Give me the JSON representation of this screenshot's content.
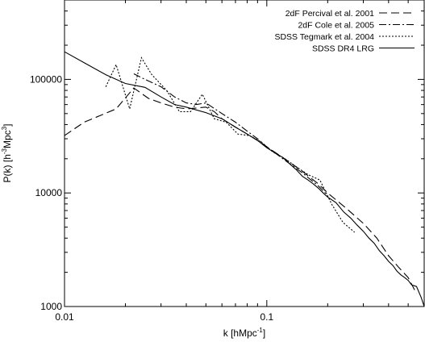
{
  "chart_data": {
    "type": "line",
    "title": "",
    "xlabel": "k [hMpc",
    "xlabel_sup": "-1",
    "xlabel_end": "]",
    "ylabel": "P(k) [h",
    "ylabel_sup1": "-3",
    "ylabel_mid": "Mpc",
    "ylabel_sup2": "3",
    "ylabel_end": "]",
    "xscale": "log",
    "yscale": "log",
    "xlim": [
      0.01,
      0.6
    ],
    "ylim": [
      1000,
      500000
    ],
    "grid": false,
    "legend_position": "top-right",
    "x_ticks": [
      {
        "value": 0.01,
        "label": "0.01"
      },
      {
        "value": 0.1,
        "label": "0.1"
      }
    ],
    "y_ticks": [
      {
        "value": 1000,
        "label": "1000"
      },
      {
        "value": 10000,
        "label": "10000"
      },
      {
        "value": 100000,
        "label": "100000"
      }
    ],
    "series": [
      {
        "name": "2dF Percival et al. 2001",
        "dash": "10,5",
        "x": [
          0.01,
          0.0125,
          0.015,
          0.018,
          0.022,
          0.026,
          0.03,
          0.035,
          0.04,
          0.045,
          0.05,
          0.055,
          0.06,
          0.07,
          0.08,
          0.09,
          0.1,
          0.12,
          0.15,
          0.18,
          0.2,
          0.25,
          0.3,
          0.35,
          0.4,
          0.45,
          0.5,
          0.55
        ],
        "y": [
          32000,
          42000,
          48000,
          55000,
          84000,
          68000,
          62000,
          57000,
          55000,
          56000,
          57000,
          52000,
          45000,
          38000,
          33000,
          29000,
          25500,
          20500,
          15500,
          12000,
          10000,
          7200,
          5400,
          4000,
          2800,
          2200,
          1800,
          1300
        ]
      },
      {
        "name": "2dF Cole et al. 2005",
        "dash": "9,3,2,3",
        "x": [
          0.022,
          0.025,
          0.03,
          0.035,
          0.04,
          0.045,
          0.05,
          0.06,
          0.07,
          0.08,
          0.09,
          0.1,
          0.12,
          0.15,
          0.18,
          0.2
        ],
        "y": [
          112000,
          100000,
          86000,
          70000,
          62000,
          60000,
          62000,
          50000,
          42000,
          35000,
          30000,
          25500,
          20000,
          15000,
          11500,
          9500
        ]
      },
      {
        "name": "SDSS Tegmark et al. 2004",
        "dash": "2,2",
        "x": [
          0.016,
          0.018,
          0.021,
          0.024,
          0.027,
          0.032,
          0.037,
          0.042,
          0.048,
          0.055,
          0.063,
          0.072,
          0.082,
          0.094,
          0.107,
          0.123,
          0.14,
          0.16,
          0.183,
          0.209,
          0.238,
          0.272
        ],
        "y": [
          86000,
          135000,
          55000,
          155000,
          110000,
          80000,
          52000,
          52000,
          74000,
          45000,
          42000,
          33000,
          32000,
          28000,
          23000,
          20000,
          17000,
          14500,
          13000,
          8000,
          5500,
          4500
        ]
      },
      {
        "name": "SDSS DR4 LRG",
        "dash": "",
        "x": [
          0.01,
          0.013,
          0.016,
          0.02,
          0.025,
          0.03,
          0.035,
          0.04,
          0.05,
          0.06,
          0.07,
          0.08,
          0.09,
          0.1,
          0.11,
          0.12,
          0.13,
          0.14,
          0.15,
          0.16,
          0.17,
          0.18,
          0.19,
          0.2,
          0.22,
          0.24,
          0.26,
          0.28,
          0.3,
          0.32,
          0.34,
          0.36,
          0.38,
          0.4,
          0.42,
          0.44,
          0.46,
          0.48,
          0.5,
          0.52,
          0.55,
          0.58,
          0.6
        ],
        "y": [
          175000,
          135000,
          110000,
          92000,
          85000,
          70000,
          60000,
          57000,
          51000,
          45000,
          38000,
          33000,
          29000,
          25000,
          22500,
          20500,
          18000,
          16000,
          14000,
          13000,
          12000,
          11000,
          10000,
          9200,
          8200,
          6800,
          6000,
          5200,
          4600,
          4000,
          3600,
          3100,
          2800,
          2500,
          2300,
          2050,
          1900,
          1800,
          1700,
          1550,
          1500,
          1200,
          1000
        ]
      }
    ]
  }
}
